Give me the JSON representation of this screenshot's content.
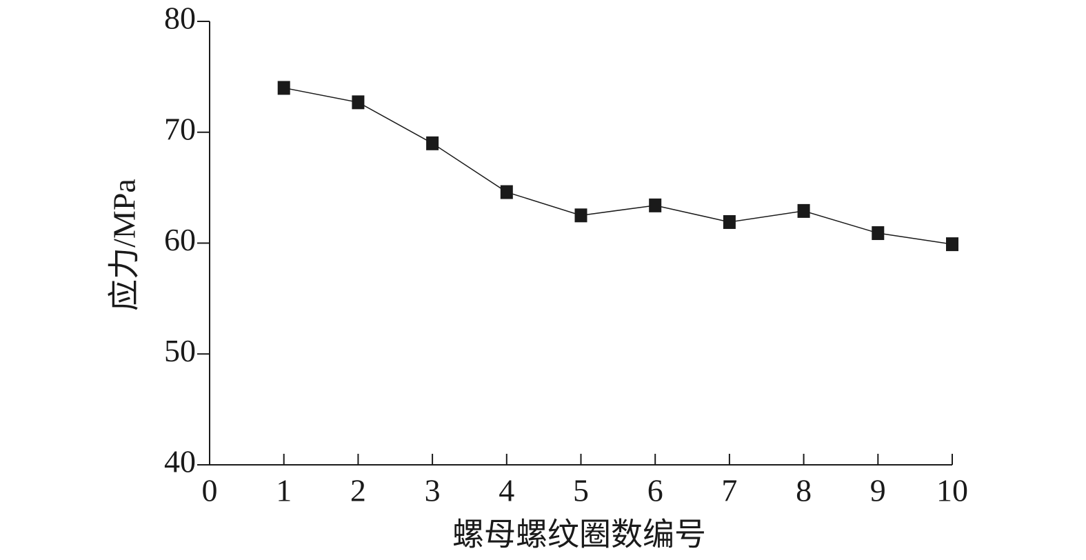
{
  "chart_data": {
    "type": "line",
    "xlabel": "螺母螺纹圈数编号",
    "ylabel": "应力/MPa",
    "x": [
      1,
      2,
      3,
      4,
      5,
      6,
      7,
      8,
      9,
      10
    ],
    "series": [
      {
        "color": "#1a1a1a",
        "values": [
          74.0,
          72.7,
          69.0,
          64.6,
          62.5,
          63.4,
          61.9,
          62.9,
          60.9,
          59.9
        ]
      }
    ],
    "xlim": [
      0,
      10
    ],
    "xticks": [
      0,
      1,
      2,
      3,
      4,
      5,
      6,
      7,
      8,
      9,
      10
    ],
    "ylim": [
      40,
      80
    ],
    "yticks": [
      40,
      50,
      60,
      70,
      80
    ]
  }
}
